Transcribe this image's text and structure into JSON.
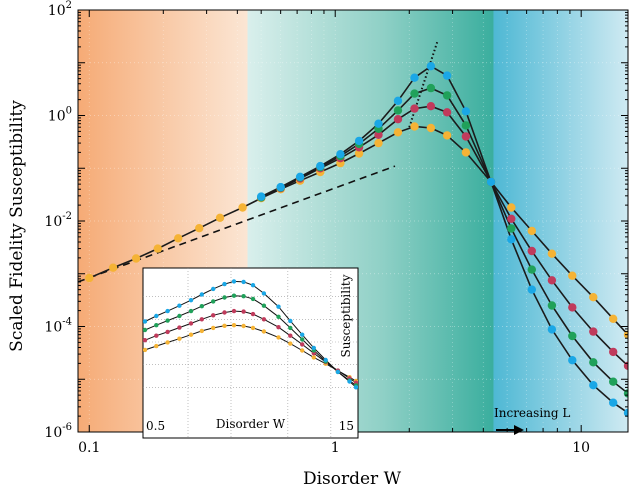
{
  "chart_data": [
    {
      "type": "line",
      "role": "main",
      "xlabel": "Disorder W",
      "ylabel": "Scaled Fidelity Susceptibility",
      "x_scale": "log",
      "y_scale": "log",
      "xlim": [
        0.09,
        15.5
      ],
      "ylim": [
        1e-06,
        100
      ],
      "x_ticks": [
        0.1,
        1,
        10
      ],
      "x_tick_labels": [
        "0.1",
        "1",
        "10"
      ],
      "y_ticks": [
        1e-06,
        0.0001,
        0.01,
        1,
        100
      ],
      "y_tick_labels": [
        "10^-6",
        "10^-4",
        "10^-2",
        "10^0",
        "10^2"
      ],
      "background_regions": [
        {
          "from": 0.09,
          "to": 0.44,
          "color": "#f6b989"
        },
        {
          "from": 0.44,
          "to": 4.4,
          "color": "#3aaea0"
        },
        {
          "from": 4.4,
          "to": 15.5,
          "color": "#2fa8c9"
        }
      ],
      "annotations": [
        {
          "text": "Increasing L",
          "x": 5.5,
          "y": 1.4e-05
        }
      ],
      "guide_lines": [
        {
          "style": "dashed",
          "points": [
            [
              0.09,
              0.0007
            ],
            [
              1.75,
              0.11
            ]
          ]
        },
        {
          "style": "dotted",
          "points": [
            [
              2.0,
              0.6
            ],
            [
              2.6,
              25
            ]
          ]
        }
      ],
      "series": [
        {
          "color": "#f5b335",
          "x": [
            0.1,
            0.125,
            0.155,
            0.19,
            0.23,
            0.28,
            0.34,
            0.42,
            0.5,
            0.6,
            0.72,
            0.87,
            1.05,
            1.25,
            1.5,
            1.8,
            2.1,
            2.45,
            2.85,
            3.4,
            4.3,
            5.2,
            6.3,
            7.6,
            9.2,
            11.2,
            13.5,
            15.5
          ],
          "y": [
            0.00083,
            0.0013,
            0.00195,
            0.003,
            0.0047,
            0.0073,
            0.0115,
            0.018,
            0.027,
            0.04,
            0.058,
            0.085,
            0.125,
            0.19,
            0.3,
            0.48,
            0.62,
            0.58,
            0.42,
            0.2,
            0.055,
            0.018,
            0.0065,
            0.0024,
            0.00092,
            0.00036,
            0.00014,
            7e-05
          ]
        },
        {
          "color": "#c03b5c",
          "x": [
            0.5,
            0.6,
            0.72,
            0.87,
            1.05,
            1.25,
            1.5,
            1.8,
            2.1,
            2.45,
            2.85,
            3.4,
            4.3,
            5.2,
            6.3,
            7.6,
            9.2,
            11.2,
            13.5,
            15.5
          ],
          "y": [
            0.028,
            0.042,
            0.064,
            0.1,
            0.155,
            0.25,
            0.43,
            0.85,
            1.35,
            1.5,
            1.15,
            0.4,
            0.055,
            0.011,
            0.0027,
            0.00075,
            0.00023,
            8e-05,
            3.3e-05,
            1.8e-05
          ]
        },
        {
          "color": "#20a15a",
          "x": [
            0.5,
            0.6,
            0.72,
            0.87,
            1.05,
            1.25,
            1.5,
            1.8,
            2.1,
            2.45,
            2.85,
            3.4,
            4.3,
            5.2,
            6.3,
            7.6,
            9.2,
            11.2,
            13.5,
            15.5
          ],
          "y": [
            0.028,
            0.043,
            0.067,
            0.105,
            0.17,
            0.29,
            0.56,
            1.25,
            2.6,
            3.3,
            2.4,
            0.65,
            0.055,
            0.0072,
            0.0012,
            0.00025,
            6.6e-05,
            2.1e-05,
            9e-06,
            5.4e-06
          ]
        },
        {
          "color": "#1aa7e6",
          "x": [
            0.5,
            0.6,
            0.72,
            0.87,
            1.05,
            1.25,
            1.5,
            1.8,
            2.1,
            2.45,
            2.85,
            3.4,
            4.3,
            5.2,
            6.3,
            7.6,
            9.2,
            11.2,
            13.5,
            15.5
          ],
          "y": [
            0.029,
            0.044,
            0.069,
            0.11,
            0.185,
            0.33,
            0.7,
            1.9,
            5.2,
            8.6,
            5.7,
            1.2,
            0.055,
            0.0045,
            0.0005,
            8.8e-05,
            2.3e-05,
            7.7e-06,
            3.6e-06,
            2.3e-06
          ]
        }
      ]
    },
    {
      "type": "line",
      "role": "inset",
      "xlabel": "Disorder W",
      "ylabel": "Susceptibility",
      "x_tick_labels": [
        "0.5",
        "15"
      ],
      "x_scale": "log",
      "y_scale": "log",
      "xlim": [
        0.5,
        15
      ],
      "ylim": [
        1e-05,
        10
      ],
      "series": [
        {
          "color": "#f5b335",
          "x": [
            0.5,
            0.6,
            0.72,
            0.87,
            1.05,
            1.25,
            1.5,
            1.8,
            2.1,
            2.45,
            2.85,
            3.4,
            4.3,
            5.2,
            6.3,
            7.6,
            9.2,
            11.2,
            13.5,
            15
          ],
          "y": [
            0.0045,
            0.0066,
            0.0096,
            0.014,
            0.021,
            0.031,
            0.042,
            0.052,
            0.055,
            0.051,
            0.042,
            0.029,
            0.016,
            0.0085,
            0.0042,
            0.0021,
            0.0011,
            0.00054,
            0.00028,
            0.00019
          ]
        },
        {
          "color": "#c03b5c",
          "x": [
            0.5,
            0.6,
            0.72,
            0.87,
            1.05,
            1.25,
            1.5,
            1.8,
            2.1,
            2.45,
            2.85,
            3.4,
            4.3,
            5.2,
            6.3,
            7.6,
            9.2,
            11.2,
            13.5,
            15
          ],
          "y": [
            0.012,
            0.019,
            0.028,
            0.043,
            0.066,
            0.1,
            0.15,
            0.2,
            0.23,
            0.22,
            0.17,
            0.1,
            0.045,
            0.019,
            0.0078,
            0.0032,
            0.0013,
            0.00055,
            0.00025,
            0.00016
          ]
        },
        {
          "color": "#20a15a",
          "x": [
            0.5,
            0.6,
            0.72,
            0.87,
            1.05,
            1.25,
            1.5,
            1.8,
            2.1,
            2.45,
            2.85,
            3.4,
            4.3,
            5.2,
            6.3,
            7.6,
            9.2,
            11.2,
            13.5,
            15
          ],
          "y": [
            0.034,
            0.055,
            0.088,
            0.14,
            0.23,
            0.38,
            0.62,
            0.92,
            1.1,
            1.05,
            0.8,
            0.4,
            0.13,
            0.042,
            0.013,
            0.0042,
            0.0014,
            0.00048,
            0.0002,
            0.00012
          ]
        },
        {
          "color": "#1aa7e6",
          "x": [
            0.5,
            0.6,
            0.72,
            0.87,
            1.05,
            1.25,
            1.5,
            1.8,
            2.1,
            2.45,
            2.85,
            3.4,
            4.3,
            5.2,
            6.3,
            7.6,
            9.2,
            11.2,
            13.5,
            15
          ],
          "y": [
            0.08,
            0.14,
            0.23,
            0.4,
            0.7,
            1.25,
            2.2,
            3.6,
            4.7,
            4.5,
            3.2,
            1.4,
            0.36,
            0.085,
            0.021,
            0.0055,
            0.0016,
            0.00048,
            0.00018,
            0.0001
          ]
        }
      ]
    }
  ]
}
